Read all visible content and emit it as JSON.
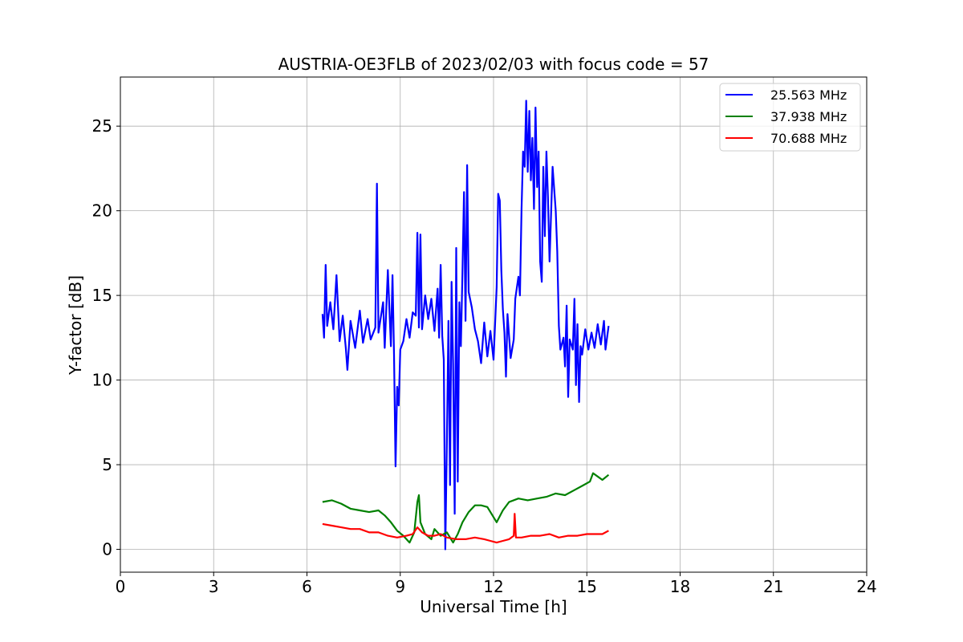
{
  "chart_data": {
    "type": "line",
    "title": "AUSTRIA-OE3FLB of 2023/02/03 with focus code = 57",
    "xlabel": "Universal Time [h]",
    "ylabel": "Y-factor [dB]",
    "xlim": [
      0,
      24
    ],
    "ylim": [
      -1.35,
      27.9
    ],
    "xticks": [
      0,
      3,
      6,
      9,
      12,
      15,
      18,
      21,
      24
    ],
    "yticks": [
      0,
      5,
      10,
      15,
      20,
      25
    ],
    "grid": true,
    "legend_position": "top-right",
    "series": [
      {
        "name": "25.563 MHz",
        "color": "#0000ff",
        "points": [
          [
            6.5,
            13.9
          ],
          [
            6.55,
            12.5
          ],
          [
            6.6,
            16.8
          ],
          [
            6.65,
            13.2
          ],
          [
            6.75,
            14.6
          ],
          [
            6.85,
            13.0
          ],
          [
            6.95,
            16.2
          ],
          [
            7.05,
            12.3
          ],
          [
            7.15,
            13.8
          ],
          [
            7.25,
            11.9
          ],
          [
            7.3,
            10.6
          ],
          [
            7.4,
            13.5
          ],
          [
            7.55,
            11.9
          ],
          [
            7.7,
            14.1
          ],
          [
            7.8,
            12.2
          ],
          [
            7.95,
            13.6
          ],
          [
            8.05,
            12.4
          ],
          [
            8.2,
            13.1
          ],
          [
            8.25,
            21.6
          ],
          [
            8.3,
            12.8
          ],
          [
            8.45,
            14.6
          ],
          [
            8.5,
            11.9
          ],
          [
            8.6,
            16.5
          ],
          [
            8.7,
            12.0
          ],
          [
            8.75,
            16.2
          ],
          [
            8.8,
            11.5
          ],
          [
            8.85,
            4.9
          ],
          [
            8.9,
            9.6
          ],
          [
            8.95,
            8.5
          ],
          [
            9.0,
            11.8
          ],
          [
            9.1,
            12.3
          ],
          [
            9.2,
            13.6
          ],
          [
            9.3,
            12.5
          ],
          [
            9.4,
            14.0
          ],
          [
            9.5,
            13.8
          ],
          [
            9.55,
            18.7
          ],
          [
            9.6,
            13.1
          ],
          [
            9.65,
            18.6
          ],
          [
            9.7,
            13.0
          ],
          [
            9.8,
            15.0
          ],
          [
            9.9,
            13.6
          ],
          [
            10.0,
            14.8
          ],
          [
            10.1,
            12.9
          ],
          [
            10.2,
            15.4
          ],
          [
            10.25,
            12.5
          ],
          [
            10.3,
            16.8
          ],
          [
            10.35,
            12.6
          ],
          [
            10.4,
            11.2
          ],
          [
            10.45,
            0.0
          ],
          [
            10.5,
            6.5
          ],
          [
            10.55,
            13.5
          ],
          [
            10.6,
            3.8
          ],
          [
            10.65,
            15.8
          ],
          [
            10.7,
            11.0
          ],
          [
            10.75,
            2.1
          ],
          [
            10.8,
            17.8
          ],
          [
            10.85,
            4.0
          ],
          [
            10.9,
            14.6
          ],
          [
            10.95,
            12.0
          ],
          [
            11.0,
            16.4
          ],
          [
            11.05,
            21.1
          ],
          [
            11.1,
            13.5
          ],
          [
            11.15,
            22.7
          ],
          [
            11.2,
            15.2
          ],
          [
            11.3,
            14.3
          ],
          [
            11.4,
            13.0
          ],
          [
            11.5,
            12.3
          ],
          [
            11.6,
            11.0
          ],
          [
            11.7,
            13.4
          ],
          [
            11.8,
            11.4
          ],
          [
            11.9,
            12.9
          ],
          [
            12.0,
            11.2
          ],
          [
            12.1,
            15.5
          ],
          [
            12.15,
            21.0
          ],
          [
            12.2,
            20.6
          ],
          [
            12.25,
            16.5
          ],
          [
            12.3,
            14.2
          ],
          [
            12.35,
            12.8
          ],
          [
            12.4,
            10.2
          ],
          [
            12.45,
            13.9
          ],
          [
            12.55,
            11.3
          ],
          [
            12.65,
            12.4
          ],
          [
            12.7,
            14.8
          ],
          [
            12.8,
            16.1
          ],
          [
            12.85,
            15.0
          ],
          [
            12.9,
            20.1
          ],
          [
            12.95,
            23.5
          ],
          [
            13.0,
            22.6
          ],
          [
            13.05,
            26.5
          ],
          [
            13.1,
            22.3
          ],
          [
            13.15,
            25.9
          ],
          [
            13.2,
            21.8
          ],
          [
            13.25,
            24.3
          ],
          [
            13.3,
            20.1
          ],
          [
            13.35,
            26.1
          ],
          [
            13.4,
            21.4
          ],
          [
            13.45,
            23.5
          ],
          [
            13.5,
            17.0
          ],
          [
            13.55,
            15.8
          ],
          [
            13.6,
            22.6
          ],
          [
            13.65,
            18.5
          ],
          [
            13.7,
            23.5
          ],
          [
            13.75,
            20.8
          ],
          [
            13.8,
            17.0
          ],
          [
            13.9,
            22.6
          ],
          [
            14.0,
            20.0
          ],
          [
            14.05,
            17.6
          ],
          [
            14.1,
            13.2
          ],
          [
            14.15,
            11.8
          ],
          [
            14.25,
            12.5
          ],
          [
            14.3,
            10.8
          ],
          [
            14.35,
            14.4
          ],
          [
            14.4,
            9.0
          ],
          [
            14.45,
            12.4
          ],
          [
            14.55,
            11.8
          ],
          [
            14.6,
            14.8
          ],
          [
            14.65,
            9.7
          ],
          [
            14.7,
            13.3
          ],
          [
            14.75,
            8.7
          ],
          [
            14.8,
            12.0
          ],
          [
            14.85,
            11.5
          ],
          [
            14.95,
            13.0
          ],
          [
            15.05,
            11.8
          ],
          [
            15.15,
            12.8
          ],
          [
            15.25,
            11.9
          ],
          [
            15.35,
            13.3
          ],
          [
            15.45,
            12.1
          ],
          [
            15.55,
            13.5
          ],
          [
            15.6,
            11.8
          ],
          [
            15.7,
            13.2
          ]
        ]
      },
      {
        "name": "37.938 MHz",
        "color": "#008000",
        "points": [
          [
            6.5,
            2.8
          ],
          [
            6.8,
            2.9
          ],
          [
            7.1,
            2.7
          ],
          [
            7.4,
            2.4
          ],
          [
            7.7,
            2.3
          ],
          [
            8.0,
            2.2
          ],
          [
            8.3,
            2.3
          ],
          [
            8.5,
            2.0
          ],
          [
            8.7,
            1.6
          ],
          [
            8.9,
            1.1
          ],
          [
            9.1,
            0.8
          ],
          [
            9.3,
            0.4
          ],
          [
            9.45,
            1.0
          ],
          [
            9.55,
            2.8
          ],
          [
            9.6,
            3.2
          ],
          [
            9.65,
            1.6
          ],
          [
            9.8,
            0.9
          ],
          [
            10.0,
            0.6
          ],
          [
            10.1,
            1.2
          ],
          [
            10.3,
            0.8
          ],
          [
            10.5,
            1.0
          ],
          [
            10.7,
            0.4
          ],
          [
            10.85,
            0.9
          ],
          [
            11.0,
            1.6
          ],
          [
            11.2,
            2.2
          ],
          [
            11.4,
            2.6
          ],
          [
            11.6,
            2.6
          ],
          [
            11.8,
            2.5
          ],
          [
            12.0,
            1.9
          ],
          [
            12.1,
            1.6
          ],
          [
            12.3,
            2.3
          ],
          [
            12.5,
            2.8
          ],
          [
            12.8,
            3.0
          ],
          [
            13.1,
            2.9
          ],
          [
            13.4,
            3.0
          ],
          [
            13.7,
            3.1
          ],
          [
            14.0,
            3.3
          ],
          [
            14.3,
            3.2
          ],
          [
            14.6,
            3.5
          ],
          [
            14.9,
            3.8
          ],
          [
            15.1,
            4.0
          ],
          [
            15.2,
            4.5
          ],
          [
            15.35,
            4.3
          ],
          [
            15.5,
            4.1
          ],
          [
            15.7,
            4.4
          ]
        ]
      },
      {
        "name": "70.688 MHz",
        "color": "#ff0000",
        "points": [
          [
            6.5,
            1.5
          ],
          [
            6.8,
            1.4
          ],
          [
            7.1,
            1.3
          ],
          [
            7.4,
            1.2
          ],
          [
            7.7,
            1.2
          ],
          [
            8.0,
            1.0
          ],
          [
            8.3,
            1.0
          ],
          [
            8.6,
            0.8
          ],
          [
            8.9,
            0.7
          ],
          [
            9.2,
            0.8
          ],
          [
            9.4,
            0.9
          ],
          [
            9.55,
            1.3
          ],
          [
            9.7,
            1.0
          ],
          [
            9.9,
            0.8
          ],
          [
            10.1,
            0.8
          ],
          [
            10.3,
            0.9
          ],
          [
            10.5,
            0.7
          ],
          [
            10.8,
            0.6
          ],
          [
            11.1,
            0.6
          ],
          [
            11.4,
            0.7
          ],
          [
            11.7,
            0.6
          ],
          [
            11.9,
            0.5
          ],
          [
            12.1,
            0.4
          ],
          [
            12.3,
            0.5
          ],
          [
            12.5,
            0.6
          ],
          [
            12.65,
            0.8
          ],
          [
            12.68,
            2.1
          ],
          [
            12.72,
            0.7
          ],
          [
            12.9,
            0.7
          ],
          [
            13.2,
            0.8
          ],
          [
            13.5,
            0.8
          ],
          [
            13.8,
            0.9
          ],
          [
            14.1,
            0.7
          ],
          [
            14.4,
            0.8
          ],
          [
            14.7,
            0.8
          ],
          [
            15.0,
            0.9
          ],
          [
            15.3,
            0.9
          ],
          [
            15.5,
            0.9
          ],
          [
            15.7,
            1.1
          ]
        ]
      }
    ]
  }
}
